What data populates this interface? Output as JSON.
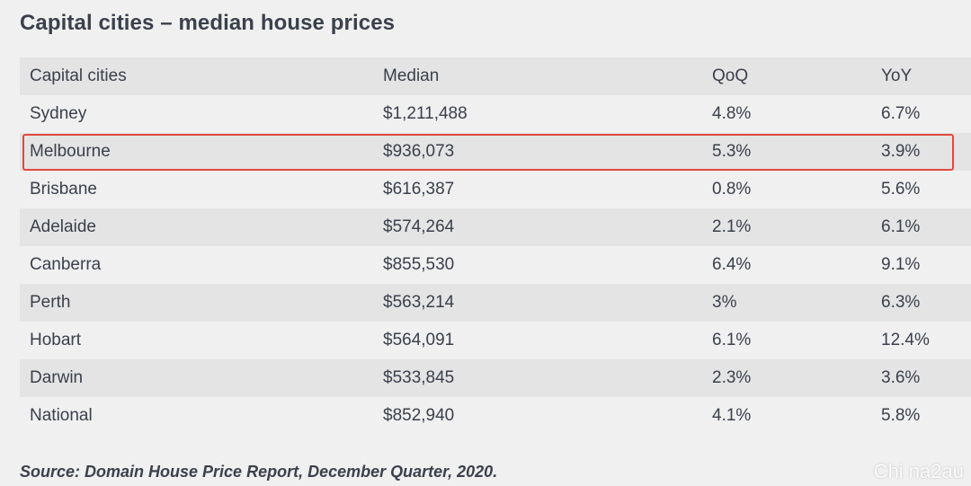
{
  "title": "Capital cities – median house prices",
  "table": {
    "headers": [
      "Capital cities",
      "Median",
      "QoQ",
      "YoY"
    ],
    "rows": [
      [
        "Sydney",
        "$1,211,488",
        "4.8%",
        "6.7%"
      ],
      [
        "Melbourne",
        "$936,073",
        "5.3%",
        "3.9%"
      ],
      [
        "Brisbane",
        "$616,387",
        "0.8%",
        "5.6%"
      ],
      [
        "Adelaide",
        "$574,264",
        "2.1%",
        "6.1%"
      ],
      [
        "Canberra",
        "$855,530",
        "6.4%",
        "9.1%"
      ],
      [
        "Perth",
        "$563,214",
        "3%",
        "6.3%"
      ],
      [
        "Hobart",
        "$564,091",
        "6.1%",
        "12.4%"
      ],
      [
        "Darwin",
        "$533,845",
        "2.3%",
        "3.6%"
      ],
      [
        "National",
        "$852,940",
        "4.1%",
        "5.8%"
      ]
    ],
    "highlighted_row": "Melbourne",
    "highlight_color": "#e0493f"
  },
  "source": "Source: Domain House Price Report, December Quarter, 2020.",
  "watermark": "Chi na2au"
}
